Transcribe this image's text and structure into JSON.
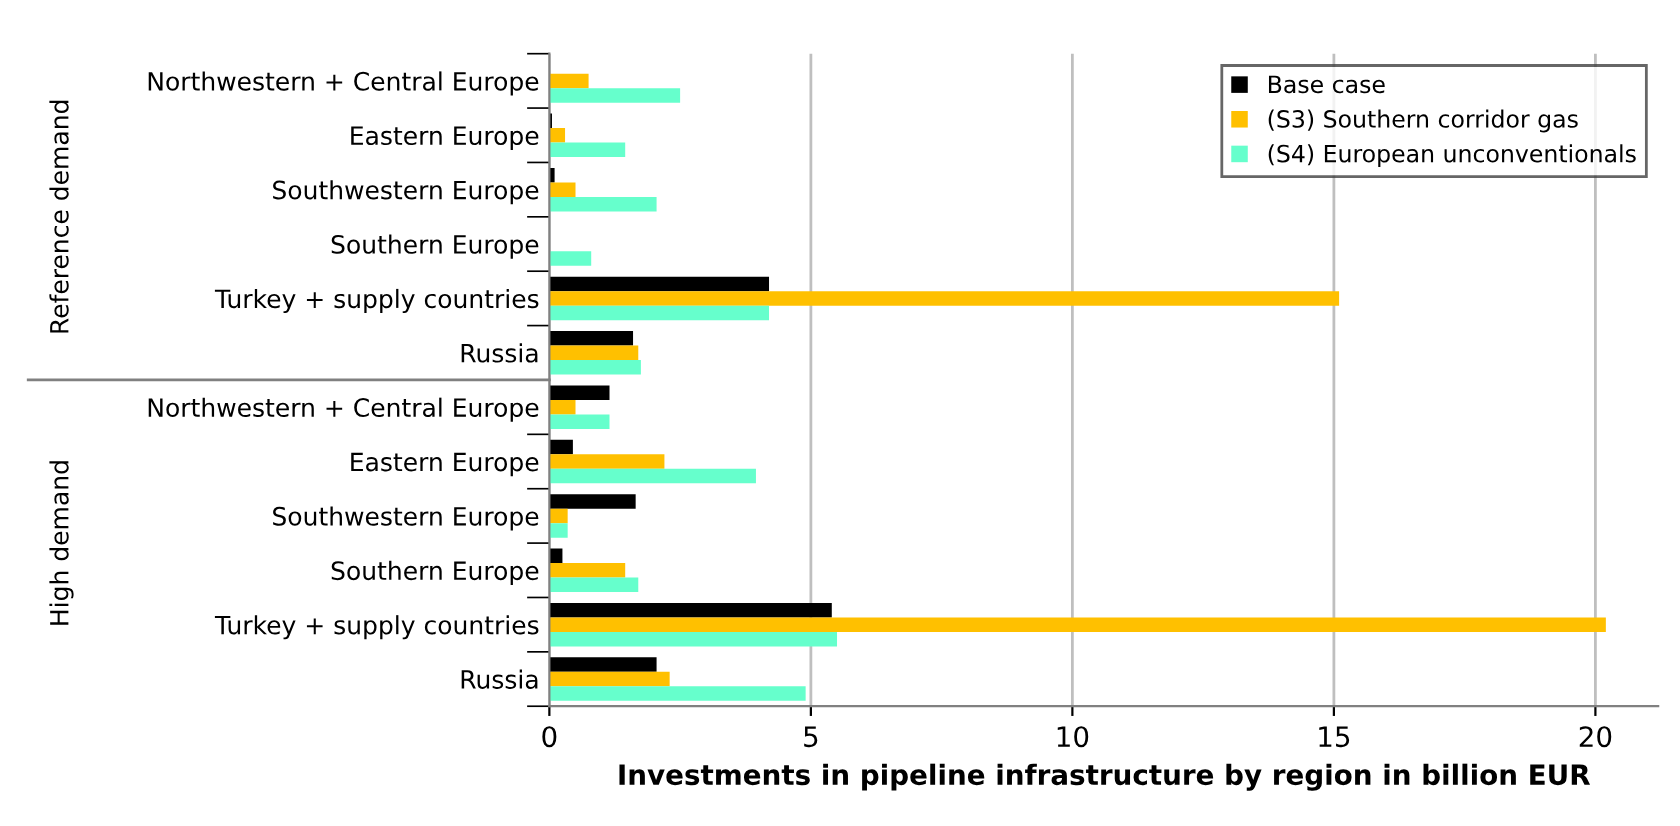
{
  "chart_data": {
    "type": "bar",
    "orientation": "horizontal",
    "xlabel": "Investments in pipeline infrastructure by region in billion EUR",
    "categories": [
      "Northwestern + Central Europe",
      "Eastern Europe",
      "Southwestern Europe",
      "Southern Europe",
      "Turkey + supply countries",
      "Russia",
      "Northwestern + Central Europe",
      "Eastern Europe",
      "Southwestern Europe",
      "Southern Europe",
      "Turkey + supply countries",
      "Russia"
    ],
    "series": [
      {
        "name": "Base case",
        "color": "#000000",
        "values": [
          0,
          0.05,
          0.1,
          0,
          4.2,
          1.6,
          1.15,
          0.45,
          1.65,
          0.25,
          5.4,
          2.05
        ]
      },
      {
        "name": "(S3) Southern corridor gas",
        "color": "#ffc000",
        "values": [
          0.75,
          0.3,
          0.5,
          0,
          15.1,
          1.7,
          0.5,
          2.2,
          0.35,
          1.45,
          20.2,
          2.3
        ]
      },
      {
        "name": "(S4) European unconventionals",
        "color": "#66ffcc",
        "values": [
          2.5,
          1.45,
          2.05,
          0.8,
          4.2,
          1.75,
          1.15,
          3.95,
          0.35,
          1.7,
          5.5,
          4.9
        ]
      }
    ],
    "annotations": [
      "Reference demand",
      "High demand"
    ],
    "xlim": [
      0,
      21.2
    ],
    "xticks": [
      0,
      5,
      10,
      15,
      20
    ],
    "grid": "x",
    "legend": "top right"
  }
}
